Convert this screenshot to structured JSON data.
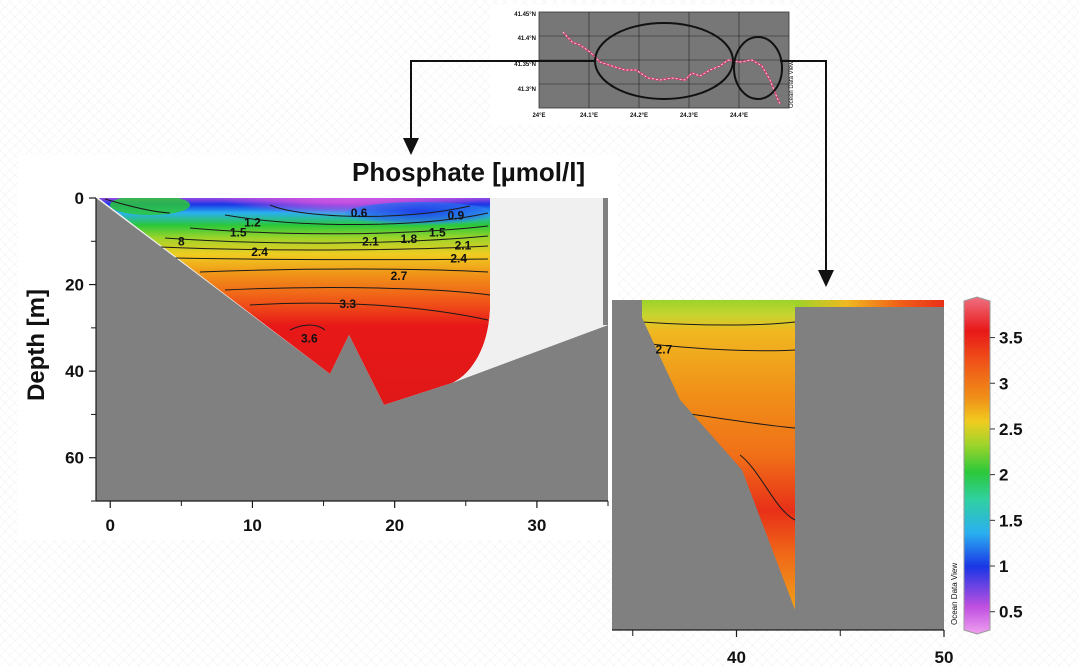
{
  "chart_data": {
    "type": "heatmap",
    "title": "Phosphate [µmol/l]",
    "ylabel": "Depth [m]",
    "xlabel": "",
    "panels": [
      {
        "name": "left",
        "xlim": [
          -1,
          35
        ],
        "ylim": [
          0,
          70
        ],
        "xticks": [
          "0",
          "10",
          "20",
          "30"
        ],
        "yticks": [
          "0",
          "20",
          "40",
          "60"
        ],
        "contour_labels": [
          {
            "value": "0.6",
            "x": 17.5,
            "y": 3.5
          },
          {
            "value": "0.9",
            "x": 24.3,
            "y": 4
          },
          {
            "value": "1.2",
            "x": 10,
            "y": 5.7
          },
          {
            "value": "1.5",
            "x": 9,
            "y": 8
          },
          {
            "value": "1.5",
            "x": 23,
            "y": 8
          },
          {
            "value": "1.8",
            "x": 21,
            "y": 9.5
          },
          {
            "value": "2.1",
            "x": 18.3,
            "y": 10
          },
          {
            "value": "2.1",
            "x": 24.8,
            "y": 11
          },
          {
            "value": "2.4",
            "x": 10.5,
            "y": 12.5
          },
          {
            "value": "2.4",
            "x": 24.5,
            "y": 14
          },
          {
            "value": "2.7",
            "x": 20.3,
            "y": 18
          },
          {
            "value": "3.3",
            "x": 16.7,
            "y": 24.5
          },
          {
            "value": "3.6",
            "x": 14,
            "y": 32.5
          }
        ],
        "partial_labels": [
          {
            "value": "8",
            "x": 5,
            "y": 10
          }
        ]
      },
      {
        "name": "right",
        "xlim": [
          34,
          50
        ],
        "xticks": [
          "40",
          "50"
        ],
        "contour_labels": [
          {
            "value": "2.7",
            "x": 36.5,
            "y": 35
          }
        ]
      }
    ],
    "colorbar": {
      "ticks": [
        "3.5",
        "3",
        "2.5",
        "2",
        "1.5",
        "1",
        "0.5"
      ],
      "range": [
        0.3,
        3.9
      ],
      "colors": [
        "#f0a0f0",
        "#c050e0",
        "#1a36e6",
        "#2ab0f0",
        "#30d0a0",
        "#2bc83a",
        "#9cd42a",
        "#f0cc20",
        "#f09018",
        "#f05818",
        "#e81818",
        "#f07080"
      ]
    },
    "inset_map": {
      "lat_ticks": [
        "41.45°N",
        "41.4°N",
        "41.35°N",
        "41.3°N"
      ],
      "lon_ticks": [
        "24°E",
        "24.1°E",
        "24.2°E",
        "24.3°E",
        "24.4°E"
      ],
      "watermark": "Ocean Data View"
    },
    "watermark": "Ocean Data View"
  },
  "colors": {
    "seabed": "#808080",
    "nodata": "#f0f0f0",
    "contour": "#1a1a1a"
  }
}
